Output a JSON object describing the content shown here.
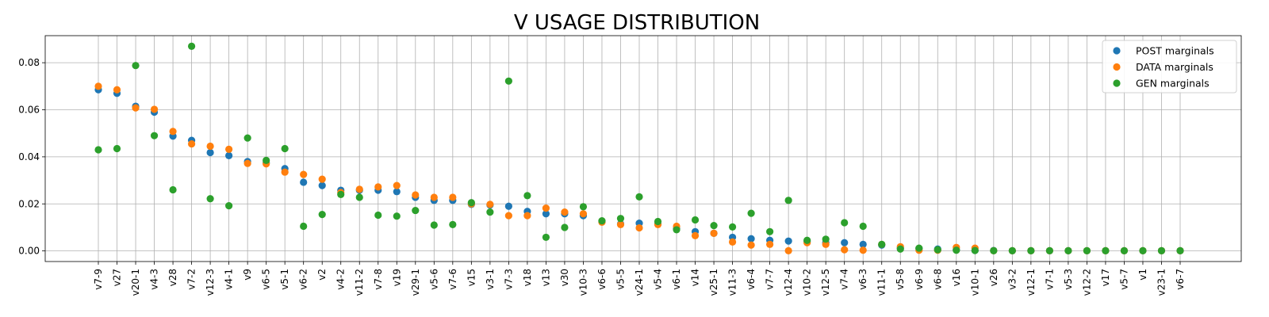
{
  "chart_data": {
    "type": "scatter",
    "title": "V USAGE DISTRIBUTION",
    "xlabel": "",
    "ylabel": "",
    "ylim": [
      -0.0045,
      0.0915
    ],
    "yticks": [
      0.0,
      0.02,
      0.04,
      0.06,
      0.08
    ],
    "ytick_labels": [
      "0.00",
      "0.02",
      "0.04",
      "0.06",
      "0.08"
    ],
    "grid": true,
    "legend_position": "top-right",
    "categories": [
      "v7-9",
      "v27",
      "v20-1",
      "v4-3",
      "v28",
      "v7-2",
      "v12-3",
      "v4-1",
      "v9",
      "v6-5",
      "v5-1",
      "v6-2",
      "v2",
      "v4-2",
      "v11-2",
      "v7-8",
      "v19",
      "v29-1",
      "v5-6",
      "v7-6",
      "v15",
      "v3-1",
      "v7-3",
      "v18",
      "v13",
      "v30",
      "v10-3",
      "v6-6",
      "v5-5",
      "v24-1",
      "v5-4",
      "v6-1",
      "v14",
      "v25-1",
      "v11-3",
      "v6-4",
      "v7-7",
      "v12-4",
      "v10-2",
      "v12-5",
      "v7-4",
      "v6-3",
      "v11-1",
      "v5-8",
      "v6-9",
      "v6-8",
      "v16",
      "v10-1",
      "v26",
      "v3-2",
      "v12-1",
      "v7-1",
      "v5-3",
      "v12-2",
      "v17",
      "v5-7",
      "v1",
      "v23-1",
      "v6-7"
    ],
    "series": [
      {
        "name": "POST marginals",
        "color": "#1f77b4",
        "values": [
          0.0685,
          0.067,
          0.0615,
          0.059,
          0.0488,
          0.047,
          0.0418,
          0.0405,
          0.038,
          0.0375,
          0.035,
          0.0292,
          0.0278,
          0.0258,
          0.0258,
          0.0258,
          0.0252,
          0.0228,
          0.0215,
          0.0215,
          0.0198,
          0.0195,
          0.019,
          0.0168,
          0.0158,
          0.0158,
          0.015,
          0.0125,
          0.0115,
          0.0118,
          0.0115,
          0.0095,
          0.0082,
          0.0075,
          0.0058,
          0.0052,
          0.0045,
          0.0042,
          0.004,
          0.0035,
          0.0035,
          0.0028,
          0.0025,
          0.0012,
          0.001,
          0.0008,
          0.0005,
          0.0002,
          0.0002,
          0.0001,
          0.0001,
          0.0001,
          0.0001,
          0.0001,
          0.0001,
          0.0001,
          0.0001,
          0.0001,
          0.0001
        ]
      },
      {
        "name": "DATA marginals",
        "color": "#ff7f0e",
        "values": [
          0.07,
          0.0685,
          0.0608,
          0.0602,
          0.0508,
          0.0455,
          0.0445,
          0.0432,
          0.0372,
          0.037,
          0.0335,
          0.0325,
          0.0305,
          0.0248,
          0.0262,
          0.0272,
          0.0278,
          0.0238,
          0.0228,
          0.0228,
          0.02,
          0.0198,
          0.015,
          0.015,
          0.0182,
          0.0165,
          0.0158,
          0.0122,
          0.0112,
          0.0098,
          0.0112,
          0.0105,
          0.0065,
          0.0075,
          0.0038,
          0.0025,
          0.0028,
          0.0001,
          0.0035,
          0.0028,
          0.0005,
          0.0003,
          0.0028,
          0.0018,
          0.0003,
          0.0003,
          0.0015,
          0.0012,
          0.0001,
          0.0001,
          0.0001,
          0.0001,
          0.0001,
          0.0001,
          0.0001,
          0.0001,
          0.0001,
          0.0001,
          0.0001
        ]
      },
      {
        "name": "GEN marginals",
        "color": "#2ca02c",
        "values": [
          0.043,
          0.0435,
          0.0788,
          0.049,
          0.026,
          0.087,
          0.0222,
          0.0192,
          0.048,
          0.0385,
          0.0435,
          0.0105,
          0.0155,
          0.024,
          0.0228,
          0.0152,
          0.0148,
          0.0172,
          0.011,
          0.0112,
          0.0205,
          0.0165,
          0.0722,
          0.0235,
          0.0058,
          0.01,
          0.0188,
          0.0128,
          0.0138,
          0.023,
          0.0125,
          0.009,
          0.0132,
          0.0108,
          0.0102,
          0.016,
          0.0082,
          0.0215,
          0.0045,
          0.005,
          0.012,
          0.0105,
          0.0028,
          0.0008,
          0.0012,
          0.0005,
          0.0003,
          0.0002,
          0.0001,
          0.0001,
          0.0001,
          0.0001,
          0.0001,
          0.0001,
          0.0001,
          0.0001,
          0.0001,
          0.0001,
          0.0001
        ]
      }
    ]
  }
}
